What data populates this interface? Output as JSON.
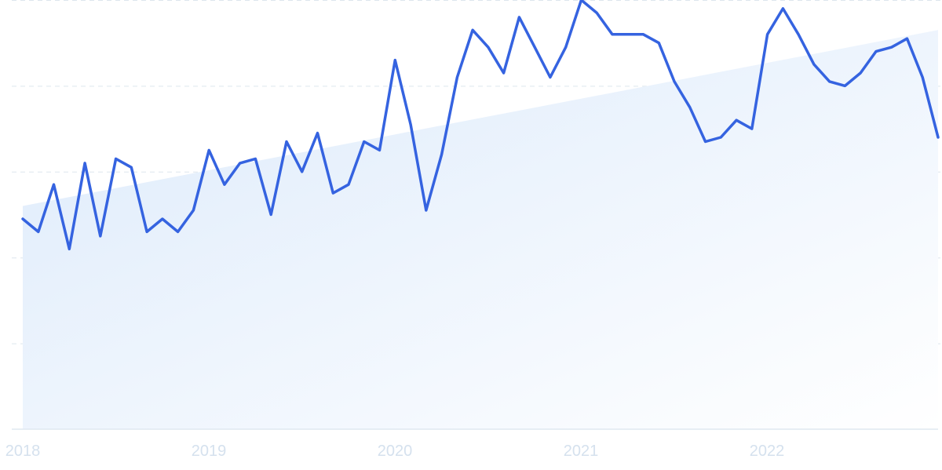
{
  "chart_data": {
    "type": "line",
    "title": "",
    "xlabel": "",
    "ylabel": "",
    "x_ticks": [
      "2018",
      "2019",
      "2020",
      "2021",
      "2022"
    ],
    "x_start": 2018.0,
    "x_step": 0.08333,
    "ylim": [
      0,
      100
    ],
    "grid": true,
    "legend": "none",
    "line_color": "#3563e0",
    "trend_fill_colors": [
      "#dceafb",
      "#ffffff"
    ],
    "series": [
      {
        "values": [
          49,
          46,
          57,
          42,
          62,
          45,
          63,
          61,
          46,
          49,
          46,
          51,
          65,
          57,
          62,
          63,
          50,
          67,
          60,
          69,
          55,
          57,
          67,
          65,
          86,
          71,
          51,
          64,
          82,
          93,
          89,
          83,
          96,
          89,
          82,
          89,
          100,
          97,
          92,
          92,
          92,
          90,
          81,
          75,
          67,
          68,
          72,
          70,
          92,
          98,
          92,
          85,
          81,
          80,
          83,
          88,
          89,
          91,
          82,
          68
        ]
      }
    ],
    "trend": {
      "start": 52,
      "end": 93
    }
  }
}
